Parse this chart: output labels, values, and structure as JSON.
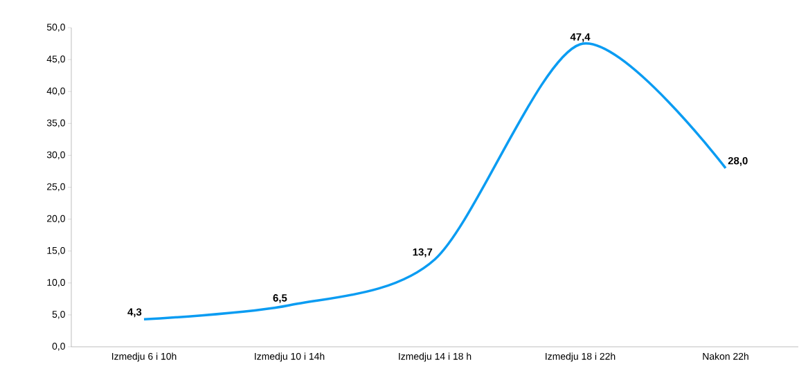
{
  "chart_data": {
    "type": "line",
    "categories": [
      "Izmedju 6 i 10h",
      "Izmedju 10 i 14h",
      "Izmedju 14 i 18 h",
      "Izmedju 18 i 22h",
      "Nakon 22h"
    ],
    "values": [
      4.3,
      6.5,
      13.7,
      47.4,
      28.0
    ],
    "value_labels": [
      "4,3",
      "6,5",
      "13,7",
      "47,4",
      "28,0"
    ],
    "color": "#0b9cf2",
    "marker": "none",
    "ylim": [
      0,
      50
    ],
    "yticks": [
      {
        "value": 0,
        "label": "0,0"
      },
      {
        "value": 5,
        "label": "5,0"
      },
      {
        "value": 10,
        "label": "10,0"
      },
      {
        "value": 15,
        "label": "15,0"
      },
      {
        "value": 20,
        "label": "20,0"
      },
      {
        "value": 25,
        "label": "25,0"
      },
      {
        "value": 30,
        "label": "30,0"
      },
      {
        "value": 35,
        "label": "35,0"
      },
      {
        "value": 40,
        "label": "40,0"
      },
      {
        "value": 45,
        "label": "45,0"
      },
      {
        "value": 50,
        "label": "50,0"
      }
    ]
  }
}
